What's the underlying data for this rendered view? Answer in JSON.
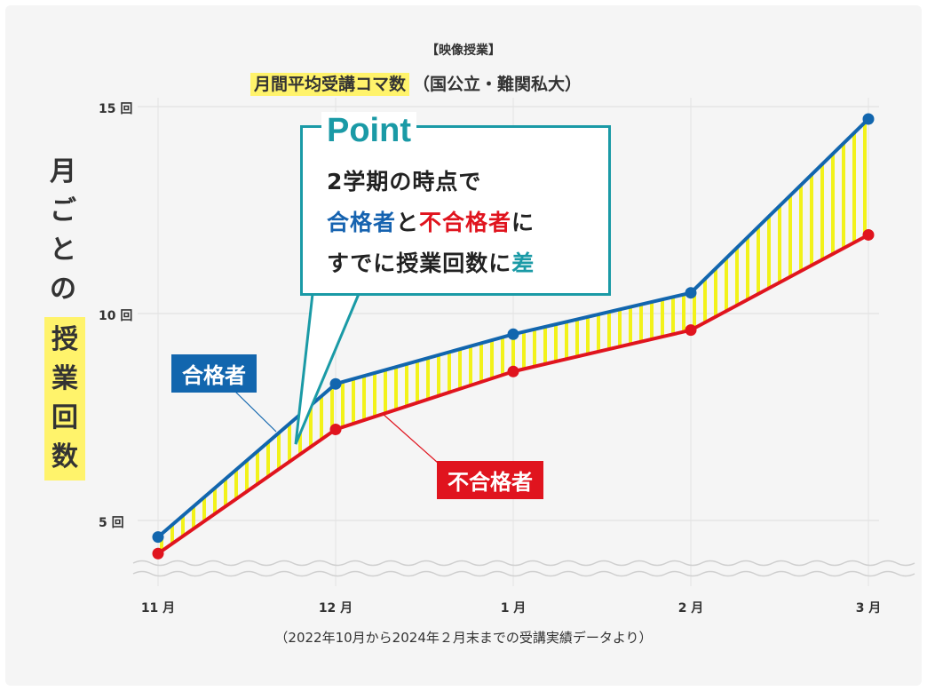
{
  "header": {
    "small_title": "【映像授業】",
    "main_title": "月間平均受講コマ数",
    "main_title_paren": "（国公立・難関私大）"
  },
  "y_axis": {
    "label_chars": [
      "月",
      "ご",
      "と",
      "の"
    ],
    "label_highlight_chars": [
      "授",
      "業",
      "回",
      "数"
    ]
  },
  "callout": {
    "title": "Point",
    "line1": "2学期の時点で",
    "line2_a": "合格者",
    "line2_b": "と",
    "line2_c": "不合格者",
    "line2_d": "に",
    "line3_a": "すでに授業回数に",
    "line3_b": "差"
  },
  "legend": {
    "pass": "合格者",
    "fail": "不合格者"
  },
  "footnote": "（2022年10月から2024年２月末までの受講実績データより）",
  "colors": {
    "pass": "#1266ae",
    "fail": "#e0141e",
    "fill_stripe": "#f2f21a",
    "accent": "#1a9aa6",
    "highlight": "#fff36b"
  },
  "chart_data": {
    "type": "line",
    "title": "月間平均受講コマ数",
    "categories": [
      "11 月",
      "12 月",
      "1 月",
      "2 月",
      "3 月"
    ],
    "y_ticks": [
      "5 回",
      "10 回",
      "15 回"
    ],
    "y_tick_values": [
      5,
      10,
      15
    ],
    "ylim": [
      3.1,
      15.3
    ],
    "axis_break": true,
    "grid": true,
    "series": [
      {
        "name": "合格者",
        "values": [
          4.6,
          8.3,
          9.5,
          10.5,
          14.7
        ]
      },
      {
        "name": "不合格者",
        "values": [
          4.2,
          7.2,
          8.6,
          9.6,
          11.9
        ]
      }
    ]
  }
}
